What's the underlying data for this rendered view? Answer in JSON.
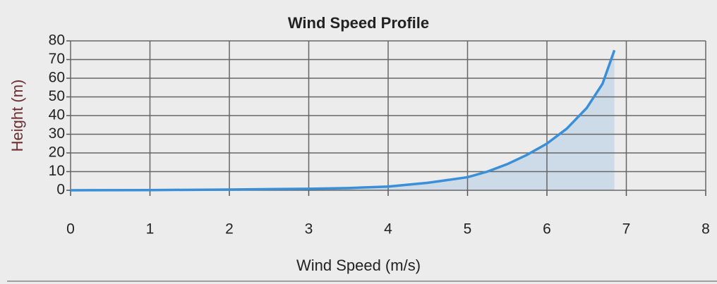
{
  "chart_data": {
    "type": "area",
    "title": "Wind Speed Profile",
    "x_label": "Wind Speed (m/s)",
    "y_label": "Height (m)",
    "x": [
      0,
      1,
      2,
      3,
      3.5,
      4,
      4.5,
      5,
      5.25,
      5.5,
      5.75,
      6,
      6.25,
      6.5,
      6.7,
      6.85
    ],
    "series": [
      {
        "name": "Height",
        "color": "#3a8fd6",
        "values": [
          0,
          0.1,
          0.4,
          0.8,
          1.2,
          2,
          4,
          7,
          10,
          14,
          19,
          25,
          33,
          44,
          57,
          75
        ]
      }
    ],
    "fill_color": "#c8d8e8",
    "xlim": [
      0,
      8
    ],
    "xticks": [
      0,
      1,
      2,
      3,
      4,
      5,
      6,
      7,
      8
    ],
    "ylim": [
      0,
      80
    ],
    "yticks": [
      0,
      10,
      20,
      30,
      40,
      50,
      60,
      70,
      80
    ],
    "grid": true
  }
}
